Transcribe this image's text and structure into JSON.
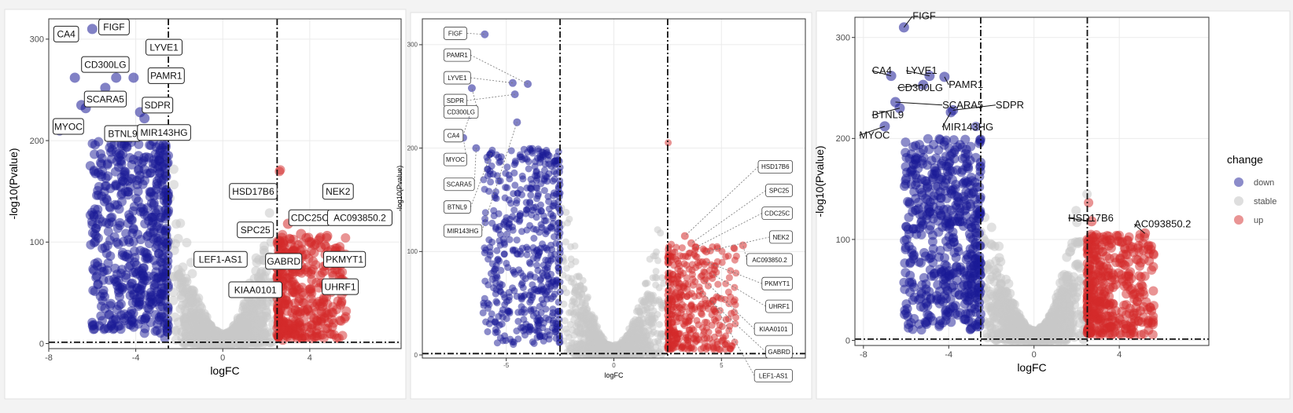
{
  "colors": {
    "down": "#1a1a96",
    "stable": "#c8c8c8",
    "up": "#d42a2a",
    "panel_bg": "#ffffff",
    "page_bg": "#f3f3f3"
  },
  "legend": {
    "title": "change",
    "items": [
      {
        "key": "down",
        "label": "down",
        "color": "#1a1a96"
      },
      {
        "key": "stable",
        "label": "stable",
        "color": "#c8c8c8"
      },
      {
        "key": "up",
        "label": "up",
        "color": "#d42a2a"
      }
    ]
  },
  "chart_data": [
    {
      "type": "scatter",
      "variant": "volcano",
      "label_style": "boxed",
      "xlabel": "logFC",
      "ylabel": "-log10(Pvalue)",
      "xlim": [
        -8,
        8.2
      ],
      "ylim": [
        -5,
        320
      ],
      "xticks": [
        -8,
        -4,
        0,
        4
      ],
      "yticks": [
        0,
        100,
        200,
        300
      ],
      "thresholds": {
        "logfc": [
          -2.5,
          2.5
        ],
        "pvalue_line": 1.3
      },
      "highlight_points": [
        {
          "gene": "FIGF",
          "x": -6.0,
          "y": 310,
          "change": "down"
        },
        {
          "gene": "CA4",
          "x": -6.8,
          "y": 262,
          "change": "down"
        },
        {
          "gene": "LYVE1",
          "x": -4.9,
          "y": 262,
          "change": "down"
        },
        {
          "gene": "CD300LG",
          "x": -5.4,
          "y": 252,
          "change": "down"
        },
        {
          "gene": "PAMR1",
          "x": -4.1,
          "y": 262,
          "change": "down"
        },
        {
          "gene": "SCARA5",
          "x": -6.5,
          "y": 235,
          "change": "down"
        },
        {
          "gene": "SDPR",
          "x": -3.8,
          "y": 228,
          "change": "down"
        },
        {
          "gene": "MYOC",
          "x": -7.5,
          "y": 210,
          "change": "down"
        },
        {
          "gene": "BTNL9",
          "x": -6.3,
          "y": 232,
          "change": "down"
        },
        {
          "gene": "MIR143HG",
          "x": -3.6,
          "y": 222,
          "change": "down"
        },
        {
          "gene": "HSD17B6",
          "x": 3.0,
          "y": 118,
          "change": "up"
        },
        {
          "gene": "NEK2",
          "x": 4.5,
          "y": 95,
          "change": "up"
        },
        {
          "gene": "SPC25",
          "x": 3.6,
          "y": 108,
          "change": "up"
        },
        {
          "gene": "CDC25C",
          "x": 4.0,
          "y": 100,
          "change": "up"
        },
        {
          "gene": "AC093850.2",
          "x": 4.8,
          "y": 106,
          "change": "up"
        },
        {
          "gene": "LEF1-AS1",
          "x": 3.0,
          "y": 80,
          "change": "up"
        },
        {
          "gene": "GABRD",
          "x": 3.5,
          "y": 82,
          "change": "up"
        },
        {
          "gene": "PKMYT1",
          "x": 5.0,
          "y": 92,
          "change": "up"
        },
        {
          "gene": "KIAA0101",
          "x": 3.6,
          "y": 76,
          "change": "up"
        },
        {
          "gene": "UHRF1",
          "x": 5.2,
          "y": 78,
          "change": "up"
        }
      ],
      "labels": [
        {
          "text": "FIGF",
          "x": -5.0,
          "y": 312
        },
        {
          "text": "CA4",
          "x": -7.2,
          "y": 305
        },
        {
          "text": "LYVE1",
          "x": -2.7,
          "y": 292
        },
        {
          "text": "CD300LG",
          "x": -5.4,
          "y": 275
        },
        {
          "text": "PAMR1",
          "x": -2.6,
          "y": 264
        },
        {
          "text": "SCARA5",
          "x": -5.4,
          "y": 241
        },
        {
          "text": "SDPR",
          "x": -3.0,
          "y": 235
        },
        {
          "text": "MYOC",
          "x": -7.1,
          "y": 214
        },
        {
          "text": "BTNL9",
          "x": -4.6,
          "y": 207
        },
        {
          "text": "MIR143HG",
          "x": -2.7,
          "y": 208
        },
        {
          "text": "HSD17B6",
          "x": 1.4,
          "y": 150
        },
        {
          "text": "NEK2",
          "x": 5.3,
          "y": 150
        },
        {
          "text": "CDC25C",
          "x": 4.0,
          "y": 124
        },
        {
          "text": "AC093850.2",
          "x": 6.3,
          "y": 124
        },
        {
          "text": "SPC25",
          "x": 1.5,
          "y": 112
        },
        {
          "text": "PKMYT1",
          "x": 5.6,
          "y": 83
        },
        {
          "text": "LEF1-AS1",
          "x": -0.1,
          "y": 83
        },
        {
          "text": "GABRD",
          "x": 2.8,
          "y": 81
        },
        {
          "text": "KIAA0101",
          "x": 1.5,
          "y": 53
        },
        {
          "text": "UHRF1",
          "x": 5.4,
          "y": 56
        }
      ]
    },
    {
      "type": "scatter",
      "variant": "volcano",
      "label_style": "boxed-leader",
      "xlabel": "logFC",
      "ylabel": "-log10(Pvalue)",
      "xlim": [
        -8.9,
        8.9
      ],
      "ylim": [
        -3,
        325
      ],
      "xticks": [
        -5,
        0,
        5
      ],
      "yticks": [
        0,
        100,
        200,
        300
      ],
      "thresholds": {
        "logfc": [
          -2.5,
          2.5
        ],
        "pvalue_line": 1.3
      },
      "highlight_points": [
        {
          "gene": "FIGF",
          "x": -6.0,
          "y": 310,
          "change": "down"
        },
        {
          "gene": "PAMR1",
          "x": -4.0,
          "y": 262,
          "change": "down"
        },
        {
          "gene": "LYVE1",
          "x": -4.7,
          "y": 263,
          "change": "down"
        },
        {
          "gene": "SDPR",
          "x": -4.6,
          "y": 252,
          "change": "down"
        },
        {
          "gene": "CD300LG",
          "x": -6.6,
          "y": 258,
          "change": "down"
        },
        {
          "gene": "CA4",
          "x": -6.7,
          "y": 232,
          "change": "down"
        },
        {
          "gene": "MYOC",
          "x": -7.0,
          "y": 210,
          "change": "down"
        },
        {
          "gene": "SCARA5",
          "x": -6.4,
          "y": 200,
          "change": "down"
        },
        {
          "gene": "BTNL9",
          "x": -5.7,
          "y": 195,
          "change": "down"
        },
        {
          "gene": "MIR143HG",
          "x": -4.5,
          "y": 225,
          "change": "down"
        },
        {
          "gene": "HSD17B6",
          "x": 3.3,
          "y": 115,
          "change": "up"
        },
        {
          "gene": "SPC25",
          "x": 3.6,
          "y": 108,
          "change": "up"
        },
        {
          "gene": "CDC25C",
          "x": 3.8,
          "y": 104,
          "change": "up"
        },
        {
          "gene": "NEK2",
          "x": 4.3,
          "y": 100,
          "change": "up"
        },
        {
          "gene": "AC093850.2",
          "x": 6.0,
          "y": 106,
          "change": "up"
        },
        {
          "gene": "PKMYT1",
          "x": 4.3,
          "y": 90,
          "change": "up"
        },
        {
          "gene": "UHRF1",
          "x": 4.6,
          "y": 78,
          "change": "up"
        },
        {
          "gene": "KIAA0101",
          "x": 4.2,
          "y": 72,
          "change": "up"
        },
        {
          "gene": "GABRD",
          "x": 4.0,
          "y": 62,
          "change": "up"
        },
        {
          "gene": "LEF1-AS1",
          "x": 4.6,
          "y": 52,
          "change": "up"
        }
      ],
      "labels": [
        {
          "text": "FIGF",
          "x": -7.9,
          "y": 311,
          "side": "left"
        },
        {
          "text": "PAMR1",
          "x": -7.9,
          "y": 290,
          "side": "left"
        },
        {
          "text": "LYVE1",
          "x": -7.9,
          "y": 268,
          "side": "left"
        },
        {
          "text": "SDPR",
          "x": -7.9,
          "y": 246,
          "side": "left"
        },
        {
          "text": "CD300LG",
          "x": -7.9,
          "y": 235,
          "side": "left"
        },
        {
          "text": "CA4",
          "x": -7.9,
          "y": 212,
          "side": "left"
        },
        {
          "text": "MYOC",
          "x": -7.9,
          "y": 189,
          "side": "left"
        },
        {
          "text": "SCARA5",
          "x": -7.9,
          "y": 165,
          "side": "left"
        },
        {
          "text": "BTNL9",
          "x": -7.9,
          "y": 143,
          "side": "left"
        },
        {
          "text": "MIR143HG",
          "x": -7.9,
          "y": 120,
          "side": "left"
        },
        {
          "text": "HSD17B6",
          "x": 8.3,
          "y": 182,
          "side": "right"
        },
        {
          "text": "SPC25",
          "x": 8.3,
          "y": 159,
          "side": "right"
        },
        {
          "text": "CDC25C",
          "x": 8.3,
          "y": 137,
          "side": "right"
        },
        {
          "text": "NEK2",
          "x": 8.3,
          "y": 114,
          "side": "right"
        },
        {
          "text": "AC093850.2",
          "x": 8.3,
          "y": 92,
          "side": "right"
        },
        {
          "text": "PKMYT1",
          "x": 8.3,
          "y": 69,
          "side": "right"
        },
        {
          "text": "UHRF1",
          "x": 8.3,
          "y": 47,
          "side": "right"
        },
        {
          "text": "KIAA0101",
          "x": 8.3,
          "y": 25,
          "side": "right"
        },
        {
          "text": "GABRD",
          "x": 8.3,
          "y": 3,
          "side": "right"
        },
        {
          "text": "LEF1-AS1",
          "x": 8.3,
          "y": -20,
          "side": "right"
        }
      ]
    },
    {
      "type": "scatter",
      "variant": "volcano",
      "label_style": "plain",
      "xlabel": "logFC",
      "ylabel": "-log10(Pvalue)",
      "xlim": [
        -8.4,
        8.2
      ],
      "ylim": [
        -5,
        320
      ],
      "xticks": [
        -8,
        -4,
        0,
        4
      ],
      "yticks": [
        0,
        100,
        200,
        300
      ],
      "thresholds": {
        "logfc": [
          -2.5,
          2.5
        ],
        "pvalue_line": 1.3
      },
      "highlight_points": [
        {
          "gene": "FIGF",
          "x": -6.1,
          "y": 310,
          "change": "down"
        },
        {
          "gene": "CA4",
          "x": -6.7,
          "y": 262,
          "change": "down"
        },
        {
          "gene": "LYVE1",
          "x": -4.9,
          "y": 262,
          "change": "down"
        },
        {
          "gene": "PAMR1",
          "x": -4.2,
          "y": 261,
          "change": "down"
        },
        {
          "gene": "CD300LG",
          "x": -5.2,
          "y": 253,
          "change": "down"
        },
        {
          "gene": "SCARA5",
          "x": -6.5,
          "y": 236,
          "change": "down"
        },
        {
          "gene": "SDPR",
          "x": -3.8,
          "y": 228,
          "change": "down"
        },
        {
          "gene": "BTNL9",
          "x": -6.3,
          "y": 230,
          "change": "down"
        },
        {
          "gene": "MYOC",
          "x": -7.0,
          "y": 212,
          "change": "down"
        },
        {
          "gene": "MIR143HG",
          "x": -3.9,
          "y": 226,
          "change": "down"
        },
        {
          "gene": "HSD17B6",
          "x": 2.7,
          "y": 118,
          "change": "up"
        },
        {
          "gene": "AC093850.2",
          "x": 5.2,
          "y": 106,
          "change": "up"
        }
      ],
      "labels": [
        {
          "text": "FIGF",
          "x": -5.7,
          "y": 318
        },
        {
          "text": "CA4",
          "x": -7.6,
          "y": 264
        },
        {
          "text": "LYVE1",
          "x": -6.0,
          "y": 264
        },
        {
          "text": "CD300LG",
          "x": -6.4,
          "y": 247
        },
        {
          "text": "PAMR1",
          "x": -4.0,
          "y": 250
        },
        {
          "text": "SCARA5",
          "x": -4.3,
          "y": 230
        },
        {
          "text": "SDPR",
          "x": -1.8,
          "y": 230
        },
        {
          "text": "BTNL9",
          "x": -7.6,
          "y": 220
        },
        {
          "text": "MIR143HG",
          "x": -4.3,
          "y": 208
        },
        {
          "text": "MYOC",
          "x": -8.2,
          "y": 200
        },
        {
          "text": "HSD17B6",
          "x": 1.6,
          "y": 118
        },
        {
          "text": "AC093850.2",
          "x": 4.7,
          "y": 112
        }
      ]
    }
  ]
}
